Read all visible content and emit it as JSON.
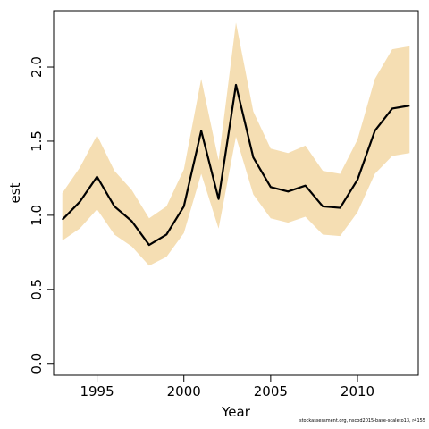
{
  "chart_data": {
    "type": "line",
    "title": "",
    "xlabel": "Year",
    "ylabel": "est",
    "xlim": [
      1992.5,
      2013.5
    ],
    "ylim": [
      -0.08,
      2.38
    ],
    "x_ticks": [
      1995,
      2000,
      2005,
      2010
    ],
    "x_tick_labels": [
      "1995",
      "2000",
      "2005",
      "2010"
    ],
    "y_ticks": [
      0.0,
      0.5,
      1.0,
      1.5,
      2.0
    ],
    "y_tick_labels": [
      "0.0",
      "0.5",
      "1.0",
      "1.5",
      "2.0"
    ],
    "grid": false,
    "legend": "none",
    "band_color": "#f5deb3",
    "line_color": "#000000",
    "x": [
      1993,
      1994,
      1995,
      1996,
      1997,
      1998,
      1999,
      2000,
      2001,
      2002,
      2003,
      2004,
      2005,
      2006,
      2007,
      2008,
      2009,
      2010,
      2011,
      2012,
      2013
    ],
    "series": [
      {
        "values": [
          0.97,
          1.09,
          1.26,
          1.06,
          0.96,
          0.8,
          0.87,
          1.06,
          1.57,
          1.11,
          1.88,
          1.39,
          1.19,
          1.16,
          1.2,
          1.06,
          1.05,
          1.24,
          1.57,
          1.72,
          1.74
        ]
      }
    ],
    "band": {
      "lower": [
        0.83,
        0.91,
        1.04,
        0.87,
        0.79,
        0.66,
        0.72,
        0.88,
        1.28,
        0.91,
        1.53,
        1.14,
        0.98,
        0.95,
        0.99,
        0.87,
        0.86,
        1.02,
        1.28,
        1.4,
        1.42
      ],
      "upper": [
        1.15,
        1.32,
        1.54,
        1.3,
        1.17,
        0.98,
        1.06,
        1.31,
        1.92,
        1.37,
        2.3,
        1.7,
        1.45,
        1.42,
        1.47,
        1.3,
        1.28,
        1.51,
        1.92,
        2.12,
        2.14
      ]
    }
  },
  "footnote": "stockassessment.org, nscod2015-base-scaleto13, r4155"
}
